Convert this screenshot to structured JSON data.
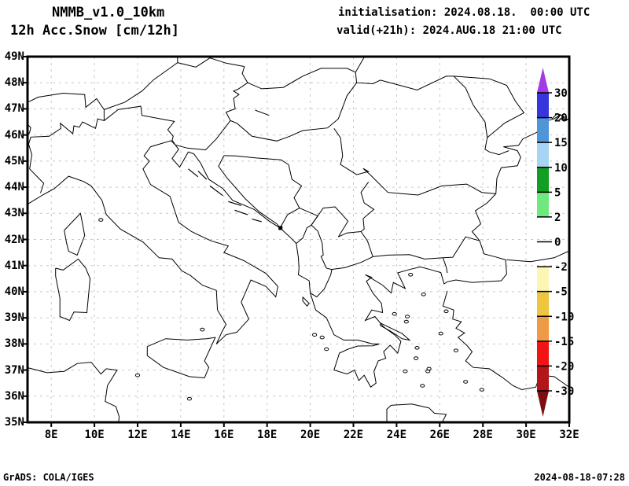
{
  "header": {
    "model": "NMMB_v1.0_10km",
    "product": "12h Acc.Snow [cm/12h]",
    "init_line": "initialisation: 2024.08.18.  00:00 UTC",
    "valid_line": "valid(+21h): 2024.AUG.18 21:00 UTC"
  },
  "axes": {
    "lat_labels": [
      "49N",
      "48N",
      "47N",
      "46N",
      "45N",
      "44N",
      "43N",
      "42N",
      "41N",
      "40N",
      "39N",
      "38N",
      "37N",
      "36N",
      "35N"
    ],
    "lon_labels": [
      "8E",
      "10E",
      "12E",
      "14E",
      "16E",
      "18E",
      "20E",
      "22E",
      "24E",
      "26E",
      "28E",
      "30E",
      "32E"
    ]
  },
  "colorbar": {
    "tick_labels": [
      "30",
      "20",
      "15",
      "10",
      "5",
      "2",
      "0",
      "-2",
      "-5",
      "-10",
      "-15",
      "-20",
      "-30"
    ],
    "segment_colors_top_to_bottom": [
      "#a13be4",
      "#3636da",
      "#4e95d9",
      "#a9d3f2",
      "#119e22",
      "#6fe97d",
      "#ffffff",
      "#ffffff",
      "#fcf6b5",
      "#edc53f",
      "#ef9a45",
      "#f01414",
      "#b2161b",
      "#7c0e12"
    ]
  },
  "chart_data": {
    "type": "map",
    "title": "12h Acc.Snow [cm/12h]",
    "model": "NMMB_v1.0_10km",
    "initialisation": "2024.08.18. 00:00 UTC",
    "valid": "2024.AUG.18 21:00 UTC (+21h)",
    "lon_range_deg_east": [
      6.9,
      32
    ],
    "lat_range_deg_north": [
      35,
      49
    ],
    "lat_tick_interval_deg": 1,
    "lon_tick_interval_deg": 2,
    "grid": "dashed gray graticule",
    "legend_position": "right, inside map frame",
    "colorbar_levels_cm_per_12h": [
      30,
      20,
      15,
      10,
      5,
      2,
      0,
      -2,
      -5,
      -10,
      -15,
      -20,
      -30
    ],
    "field_values": "no shaded snow accumulation anywhere in the domain (entire field in the 0-2 cm white band)"
  },
  "footer": {
    "left": "GrADS: COLA/IGES",
    "right": "2024-08-18-07:28"
  }
}
